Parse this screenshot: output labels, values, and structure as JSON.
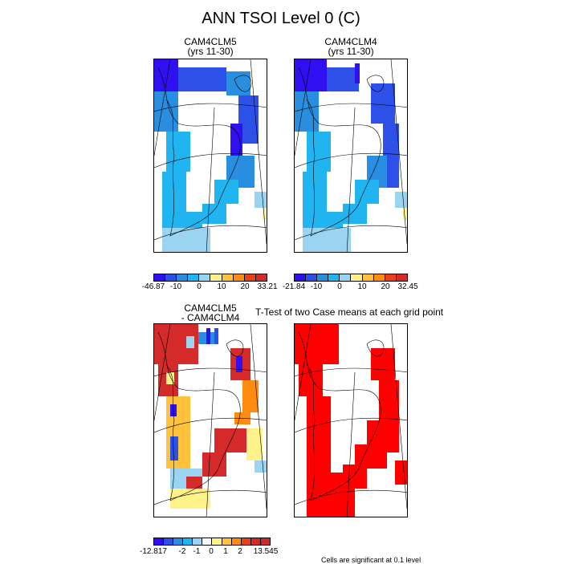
{
  "title": "ANN TSOI Level 0 (C)",
  "panels": [
    {
      "id": "p1",
      "title1": "CAM4CLM5",
      "title2": "(yrs 11-30)"
    },
    {
      "id": "p2",
      "title1": "CAM4CLM4",
      "title2": "(yrs 11-30)"
    },
    {
      "id": "p3",
      "title1": "CAM4CLM5",
      "title2": "- CAM4CLM4"
    },
    {
      "id": "p4",
      "title1": "T-Test of two Case means at each grid point",
      "title2": ""
    }
  ],
  "colorbars": {
    "cb1": {
      "labels": [
        "-46.87",
        "-10",
        "0",
        "10",
        "20",
        "33.21"
      ]
    },
    "cb2": {
      "labels": [
        "-21.84",
        "-10",
        "0",
        "10",
        "20",
        "32.45"
      ]
    },
    "cb3": {
      "labels": [
        "-12.817",
        "-2",
        "-1",
        "0",
        "1",
        "2",
        "13.545"
      ]
    }
  },
  "colors": {
    "scale": [
      "#3010f0",
      "#2c50e8",
      "#2a8ee0",
      "#20b4f0",
      "#9ad4f0",
      "#fff28a",
      "#ffc23a",
      "#ff8c10",
      "#e8401a",
      "#d42a2a"
    ],
    "significant": "#ff0000"
  },
  "footnote": "Cells are significant at 0.1 level"
}
